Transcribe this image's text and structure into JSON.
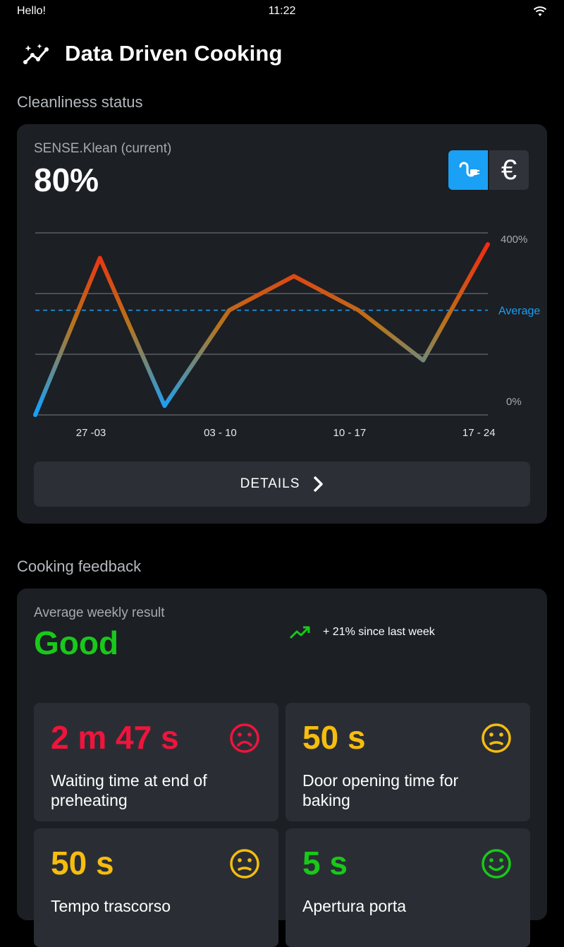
{
  "statusbar": {
    "left": "Hello!",
    "time": "11:22"
  },
  "appbar": {
    "title": "Data Driven Cooking",
    "logo_icon": "trend-sparkle-icon"
  },
  "cleanliness": {
    "section_title": "Cleanliness status",
    "subtitle": "SENSE.Klean (current)",
    "value": "80%",
    "toggles": {
      "energy_icon": "energy-plug-icon",
      "euro_symbol": "€",
      "active": "energy"
    },
    "details_label": "DETAILS"
  },
  "chart_data": {
    "type": "line",
    "x": [
      "27 -03",
      "",
      "03 - 10",
      "",
      "10 - 17",
      "",
      "17 - 24",
      ""
    ],
    "series": [
      {
        "values": [
          0,
          345,
          20,
          230,
          305,
          230,
          120,
          375
        ]
      }
    ],
    "ylim": [
      0,
      400
    ],
    "y_tick_labels": [
      "400%",
      "0%"
    ],
    "x_tick_labels": [
      "27   -03",
      "03 - 10",
      "10 - 17",
      "17 - 24"
    ],
    "reference_line": {
      "label": "Average",
      "value": 230
    },
    "colors": {
      "low": "#1aa0f5",
      "mid": "#b8741a",
      "high": "#f22a10",
      "reference": "#1aa0f5"
    },
    "grid": true
  },
  "cooking": {
    "section_title": "Cooking feedback",
    "subtitle": "Average weekly result",
    "value": "Good",
    "trend_text": "+ 21% since last week",
    "tiles": [
      {
        "value": "2 m 47 s",
        "desc": "Waiting time at end of preheating",
        "status": "bad"
      },
      {
        "value": "50 s",
        "desc": "Door opening time for baking",
        "status": "neutral"
      },
      {
        "value": "50 s",
        "desc": "Tempo trascorso",
        "status": "neutral"
      },
      {
        "value": "5 s",
        "desc": "Apertura porta",
        "status": "good"
      }
    ]
  }
}
